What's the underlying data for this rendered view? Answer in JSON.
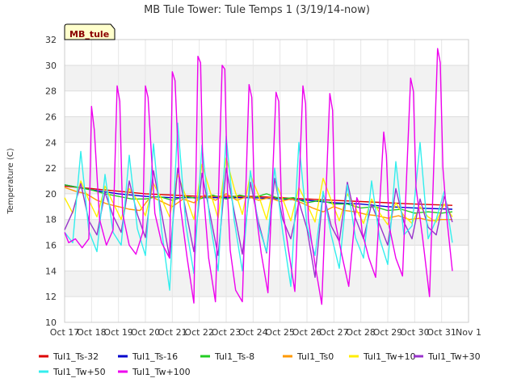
{
  "chart_data": {
    "type": "line",
    "title": "MB Tule Tower: Tule Temps 1 (3/19/14-now)",
    "badge": "MB_tule",
    "xlabel": "",
    "ylabel": "Temperature (C)",
    "x_tick_labels": [
      "Oct 17",
      "Oct 18",
      "Oct 19",
      "Oct 20",
      "Oct 21",
      "Oct 22",
      "Oct 23",
      "Oct 24",
      "Oct 25",
      "Oct 26",
      "Oct 27",
      "Oct 28",
      "Oct 29",
      "Oct 30",
      "Oct 31",
      "Nov 1"
    ],
    "xlim": [
      0,
      15
    ],
    "ylim": [
      10,
      32
    ],
    "y_ticks": [
      10,
      12,
      14,
      16,
      18,
      20,
      22,
      24,
      26,
      28,
      30,
      32
    ],
    "grid": true,
    "legend_position": "bottom",
    "series": [
      {
        "name": "Tul1_Ts-32",
        "color": "#dd0000",
        "x": [
          0,
          1,
          2,
          3,
          4,
          5,
          6,
          7,
          8,
          9,
          10,
          11,
          12,
          13,
          14.4
        ],
        "y": [
          20.6,
          20.4,
          20.2,
          20.0,
          19.9,
          19.8,
          19.8,
          19.8,
          19.7,
          19.6,
          19.5,
          19.4,
          19.3,
          19.2,
          19.1
        ]
      },
      {
        "name": "Tul1_Ts-16",
        "color": "#0000cc",
        "x": [
          0,
          1,
          2,
          3,
          4,
          5,
          6,
          7,
          8,
          9,
          10,
          11,
          12,
          13,
          14.4
        ],
        "y": [
          20.7,
          20.3,
          20.0,
          19.8,
          19.7,
          19.7,
          19.7,
          19.7,
          19.6,
          19.5,
          19.3,
          19.2,
          19.0,
          18.9,
          18.8
        ]
      },
      {
        "name": "Tul1_Ts-8",
        "color": "#22cc22",
        "x": [
          0,
          0.5,
          1,
          1.5,
          2,
          2.5,
          3,
          3.5,
          4,
          4.5,
          5,
          5.5,
          6,
          6.5,
          7,
          7.5,
          8,
          8.5,
          9,
          9.5,
          10,
          10.5,
          11,
          11.5,
          12,
          12.5,
          13,
          13.5,
          14,
          14.4
        ],
        "y": [
          20.7,
          20.5,
          20.3,
          20.0,
          19.8,
          19.6,
          19.6,
          19.8,
          19.5,
          19.8,
          19.6,
          19.9,
          19.6,
          19.9,
          19.7,
          20.0,
          19.6,
          19.7,
          19.3,
          19.5,
          19.2,
          19.2,
          18.9,
          19.0,
          18.7,
          18.8,
          18.5,
          18.6,
          18.5,
          18.6
        ]
      },
      {
        "name": "Tul1_Ts0",
        "color": "#ff9900",
        "x": [
          0,
          0.4,
          0.8,
          1.2,
          1.6,
          2,
          2.4,
          2.8,
          3.2,
          3.6,
          4,
          4.4,
          4.8,
          5.2,
          5.6,
          6,
          6.4,
          6.8,
          7.2,
          7.6,
          8,
          8.4,
          8.8,
          9.2,
          9.6,
          10,
          10.4,
          10.8,
          11.2,
          11.6,
          12,
          12.4,
          12.8,
          13.2,
          13.6,
          14,
          14.4
        ],
        "y": [
          20.5,
          20.2,
          20.0,
          19.5,
          19.2,
          19.0,
          18.8,
          18.7,
          19.8,
          19.4,
          19.0,
          19.6,
          19.3,
          19.9,
          19.5,
          20.0,
          19.5,
          19.8,
          19.5,
          19.7,
          19.4,
          19.6,
          19.3,
          18.9,
          18.6,
          19.0,
          18.7,
          18.6,
          18.4,
          18.3,
          18.1,
          18.3,
          18.0,
          18.1,
          17.9,
          18.0,
          18.0
        ]
      },
      {
        "name": "Tul1_Tw+10",
        "color": "#ffee00",
        "x": [
          0,
          0.3,
          0.6,
          0.9,
          1.2,
          1.5,
          1.8,
          2.1,
          2.4,
          2.7,
          3.0,
          3.3,
          3.6,
          3.9,
          4.2,
          4.5,
          4.8,
          5.1,
          5.4,
          5.7,
          6.0,
          6.3,
          6.6,
          6.9,
          7.2,
          7.5,
          7.8,
          8.1,
          8.4,
          8.7,
          9.0,
          9.3,
          9.6,
          9.9,
          10.2,
          10.5,
          10.8,
          11.1,
          11.4,
          11.7,
          12.0,
          12.3,
          12.6,
          12.9,
          13.2,
          13.5,
          13.8,
          14.1,
          14.4
        ],
        "y": [
          19.7,
          18.5,
          21.0,
          19.5,
          18.2,
          20.6,
          19.3,
          18.0,
          20.4,
          19.5,
          18.3,
          20.8,
          19.6,
          18.2,
          21.5,
          19.8,
          18.0,
          22.3,
          20.2,
          18.1,
          22.8,
          20.4,
          18.4,
          21.5,
          19.9,
          18.0,
          21.0,
          19.6,
          17.9,
          20.5,
          19.2,
          17.8,
          21.2,
          19.5,
          17.9,
          20.0,
          18.9,
          17.7,
          19.6,
          18.5,
          17.6,
          19.3,
          18.3,
          17.7,
          19.0,
          18.2,
          17.8,
          19.2,
          18.2
        ]
      },
      {
        "name": "Tul1_Tw+30",
        "color": "#9933cc",
        "x": [
          0,
          0.3,
          0.6,
          0.9,
          1.2,
          1.5,
          1.8,
          2.1,
          2.4,
          2.7,
          3.0,
          3.3,
          3.6,
          3.9,
          4.2,
          4.5,
          4.8,
          5.1,
          5.4,
          5.7,
          6.0,
          6.3,
          6.6,
          6.9,
          7.2,
          7.5,
          7.8,
          8.1,
          8.4,
          8.7,
          9.0,
          9.3,
          9.6,
          9.9,
          10.2,
          10.5,
          10.8,
          11.1,
          11.4,
          11.7,
          12.0,
          12.3,
          12.6,
          12.9,
          13.2,
          13.5,
          13.8,
          14.1,
          14.4
        ],
        "y": [
          17.2,
          18.6,
          20.8,
          17.9,
          16.8,
          20.1,
          18.3,
          17.0,
          21.0,
          18.4,
          16.6,
          21.8,
          18.5,
          15.0,
          22.0,
          18.7,
          15.5,
          21.6,
          18.4,
          15.2,
          22.0,
          18.6,
          15.3,
          20.9,
          17.8,
          15.4,
          21.2,
          18.0,
          16.5,
          19.4,
          17.3,
          13.5,
          20.1,
          17.5,
          16.3,
          20.9,
          18.1,
          16.5,
          19.2,
          17.6,
          16.0,
          20.4,
          17.8,
          16.5,
          19.6,
          17.4,
          16.8,
          19.8,
          17.8
        ]
      },
      {
        "name": "Tul1_Tw+50",
        "color": "#33eeee",
        "x": [
          0,
          0.3,
          0.6,
          0.9,
          1.2,
          1.5,
          1.8,
          2.1,
          2.4,
          2.7,
          3.0,
          3.3,
          3.6,
          3.9,
          4.2,
          4.5,
          4.8,
          5.1,
          5.4,
          5.7,
          6.0,
          6.3,
          6.6,
          6.9,
          7.2,
          7.5,
          7.8,
          8.1,
          8.4,
          8.7,
          9.0,
          9.3,
          9.6,
          9.9,
          10.2,
          10.5,
          10.8,
          11.1,
          11.4,
          11.7,
          12.0,
          12.3,
          12.6,
          12.9,
          13.2,
          13.5,
          13.8,
          14.1,
          14.4
        ],
        "y": [
          17.0,
          16.2,
          23.3,
          17.1,
          15.5,
          21.5,
          17.0,
          16.0,
          23.0,
          17.3,
          15.2,
          23.9,
          17.2,
          12.5,
          25.5,
          17.6,
          13.8,
          23.8,
          17.8,
          14.0,
          24.5,
          17.9,
          14.0,
          21.8,
          17.5,
          15.5,
          22.0,
          17.0,
          12.8,
          24.0,
          17.5,
          15.2,
          20.2,
          16.8,
          14.2,
          20.7,
          16.6,
          15.0,
          21.0,
          16.5,
          14.5,
          22.5,
          16.8,
          17.5,
          24.0,
          16.5,
          18.0,
          20.2,
          16.2
        ]
      },
      {
        "name": "Tul1_Tw+100",
        "color": "#ee00ee",
        "x": [
          0,
          0.15,
          0.4,
          0.65,
          0.9,
          1.0,
          1.1,
          1.3,
          1.55,
          1.8,
          1.95,
          2.05,
          2.15,
          2.4,
          2.65,
          2.9,
          3.0,
          3.1,
          3.35,
          3.6,
          3.9,
          4.0,
          4.1,
          4.3,
          4.55,
          4.8,
          4.95,
          5.05,
          5.15,
          5.35,
          5.6,
          5.85,
          5.95,
          6.05,
          6.15,
          6.35,
          6.6,
          6.85,
          6.95,
          7.05,
          7.3,
          7.55,
          7.85,
          7.95,
          8.05,
          8.3,
          8.55,
          8.85,
          8.95,
          9.05,
          9.3,
          9.55,
          9.85,
          9.95,
          10.05,
          10.3,
          10.55,
          10.85,
          10.95,
          11.05,
          11.3,
          11.55,
          11.85,
          11.95,
          12.05,
          12.3,
          12.55,
          12.85,
          12.95,
          13.05,
          13.3,
          13.55,
          13.85,
          13.95,
          14.05,
          14.2,
          14.4
        ],
        "y": [
          17.0,
          16.2,
          16.5,
          15.8,
          16.5,
          26.8,
          25.0,
          18.0,
          16.0,
          17.2,
          28.4,
          27.2,
          18.5,
          16.0,
          15.3,
          17.0,
          28.4,
          27.5,
          18.5,
          16.2,
          15.0,
          29.5,
          28.8,
          19.0,
          15.0,
          11.5,
          30.7,
          30.2,
          20.2,
          15.0,
          11.6,
          30.0,
          29.7,
          20.0,
          15.6,
          12.5,
          11.6,
          28.5,
          27.5,
          19.5,
          15.4,
          12.3,
          27.9,
          27.2,
          19.5,
          15.8,
          12.4,
          28.4,
          27.0,
          18.0,
          14.5,
          11.4,
          27.8,
          26.5,
          17.8,
          15.2,
          12.8,
          19.7,
          19.2,
          17.0,
          15.0,
          13.5,
          24.8,
          23.0,
          17.5,
          15.0,
          13.6,
          29.0,
          28.0,
          20.5,
          16.5,
          12.0,
          31.3,
          30.2,
          22.0,
          18.0,
          14.0
        ]
      }
    ]
  }
}
